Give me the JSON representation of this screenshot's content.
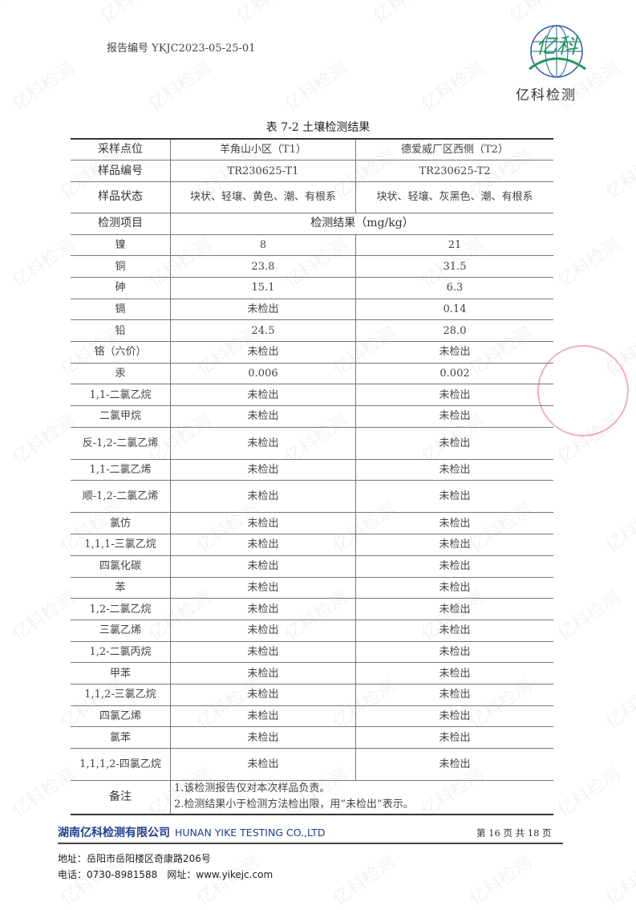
{
  "header": {
    "report_no": "报告编号 YKJC2023-05-25-01",
    "logo_text": "亿科检测",
    "logo_mark": "亿科"
  },
  "table": {
    "title": "表 7-2 土壤检测结果",
    "site_label": "采样点位",
    "sites": [
      "羊角山小区（T1）",
      "德爱威厂区西侧（T2）"
    ],
    "sample_id_label": "样品编号",
    "sample_ids": [
      "TR230625-T1",
      "TR230625-T2"
    ],
    "state_label": "样品状态",
    "states": [
      "块状、轻壤、黄色、潮、有根系",
      "块状、轻壤、灰黑色、潮、有根系"
    ],
    "item_label": "检测项目",
    "result_label": "检测结果（mg/kg）",
    "rows": [
      {
        "item": "镍",
        "t1": "8",
        "t2": "21"
      },
      {
        "item": "铜",
        "t1": "23.8",
        "t2": "31.5"
      },
      {
        "item": "砷",
        "t1": "15.1",
        "t2": "6.3"
      },
      {
        "item": "镉",
        "t1": "未检出",
        "t2": "0.14"
      },
      {
        "item": "铅",
        "t1": "24.5",
        "t2": "28.0"
      },
      {
        "item": "铬（六价）",
        "t1": "未检出",
        "t2": "未检出"
      },
      {
        "item": "汞",
        "t1": "0.006",
        "t2": "0.002"
      },
      {
        "item": "1,1-二氯乙烷",
        "t1": "未检出",
        "t2": "未检出"
      },
      {
        "item": "二氯甲烷",
        "t1": "未检出",
        "t2": "未检出"
      },
      {
        "item": "反-1,2-二氯乙烯",
        "t1": "未检出",
        "t2": "未检出",
        "tall": true
      },
      {
        "item": "1,1-二氯乙烯",
        "t1": "未检出",
        "t2": "未检出"
      },
      {
        "item": "顺-1,2-二氯乙烯",
        "t1": "未检出",
        "t2": "未检出",
        "tall": true
      },
      {
        "item": "氯仿",
        "t1": "未检出",
        "t2": "未检出"
      },
      {
        "item": "1,1,1-三氯乙烷",
        "t1": "未检出",
        "t2": "未检出"
      },
      {
        "item": "四氯化碳",
        "t1": "未检出",
        "t2": "未检出"
      },
      {
        "item": "苯",
        "t1": "未检出",
        "t2": "未检出"
      },
      {
        "item": "1,2-二氯乙烷",
        "t1": "未检出",
        "t2": "未检出"
      },
      {
        "item": "三氯乙烯",
        "t1": "未检出",
        "t2": "未检出"
      },
      {
        "item": "1,2-二氯丙烷",
        "t1": "未检出",
        "t2": "未检出"
      },
      {
        "item": "甲苯",
        "t1": "未检出",
        "t2": "未检出"
      },
      {
        "item": "1,1,2-三氯乙烷",
        "t1": "未检出",
        "t2": "未检出"
      },
      {
        "item": "四氯乙烯",
        "t1": "未检出",
        "t2": "未检出"
      },
      {
        "item": "氯苯",
        "t1": "未检出",
        "t2": "未检出"
      },
      {
        "item": "1,1,1,2-四氯乙烷",
        "t1": "未检出",
        "t2": "未检出",
        "tall": true
      }
    ],
    "notes_label": "备注",
    "notes": [
      "1.该检测报告仅对本次样品负责。",
      "2.检测结果小于检测方法检出限，用“未检出”表示。"
    ]
  },
  "footer": {
    "company_cn": "湖南亿科检测有限公司",
    "company_en": "HUNAN YIKE TESTING CO.,LTD",
    "page": "第 16 页 共 18 页",
    "address": "地址：岳阳市岳阳楼区奇康路206号",
    "phone": "电话：0730-8981588　网址：www.yikejc.com"
  },
  "colors": {
    "company": "#1f3f8f",
    "logo_green": "#1e9a5a",
    "logo_blue": "#2a5aa8",
    "stamp": "#dc3c50"
  }
}
